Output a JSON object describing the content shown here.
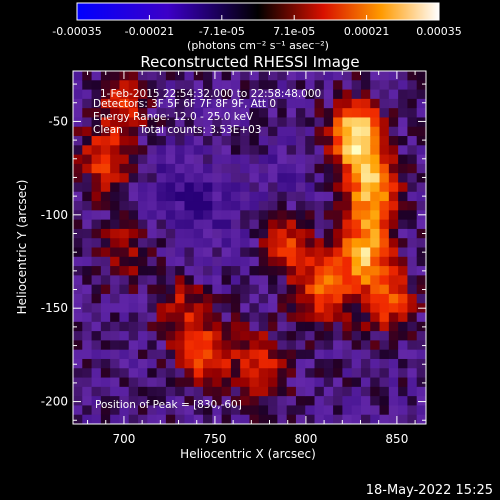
{
  "colorbar": {
    "ticks": [
      "-0.00035",
      "-0.00021",
      "-7.1e-05",
      "7.1e-05",
      "0.00021",
      "0.00035"
    ],
    "units_label": "(photons cm⁻² s⁻¹ asec⁻²)",
    "range": [
      -0.00035,
      0.00035
    ]
  },
  "chart_data": {
    "type": "heatmap",
    "title": "Reconstructed RHESSI Image",
    "xlabel": "Heliocentric X (arcsec)",
    "ylabel": "Heliocentric Y (arcsec)",
    "xlim": [
      672,
      866
    ],
    "ylim": [
      -212,
      -23
    ],
    "xticks": [
      "700",
      "750",
      "800",
      "850"
    ],
    "yticks": [
      "-50",
      "-100",
      "-150",
      "-200"
    ],
    "annotations": [
      "1-Feb-2015 22:54:32.000 to 22:58:48.000",
      "Detectors: 3F 5F 6F 7F 8F 9F, Att 0",
      "Energy Range: 12.0 - 25.0 keV",
      "Clean     Total counts: 3.53E+03"
    ],
    "peak_label": "Position of Peak = [830,-60]",
    "peak": [
      830,
      -60
    ],
    "hotspots": [
      {
        "x": 828,
        "y": -58,
        "strength": 1.0
      },
      {
        "x": 836,
        "y": -88,
        "strength": 0.8
      },
      {
        "x": 832,
        "y": -120,
        "strength": 0.75
      },
      {
        "x": 845,
        "y": -145,
        "strength": 0.55
      },
      {
        "x": 810,
        "y": -140,
        "strength": 0.6
      },
      {
        "x": 790,
        "y": -115,
        "strength": 0.45
      },
      {
        "x": 745,
        "y": -175,
        "strength": 0.55
      },
      {
        "x": 775,
        "y": -180,
        "strength": 0.45
      },
      {
        "x": 690,
        "y": -70,
        "strength": 0.5
      },
      {
        "x": 700,
        "y": -40,
        "strength": 0.4
      },
      {
        "x": 730,
        "y": -150,
        "strength": 0.35
      },
      {
        "x": 700,
        "y": -120,
        "strength": 0.3
      }
    ],
    "coldspots": [
      {
        "x": 745,
        "y": -100,
        "strength": 0.6
      },
      {
        "x": 730,
        "y": -80,
        "strength": 0.4
      },
      {
        "x": 790,
        "y": -80,
        "strength": 0.3
      }
    ]
  },
  "timestamp": "18-May-2022 15:25"
}
